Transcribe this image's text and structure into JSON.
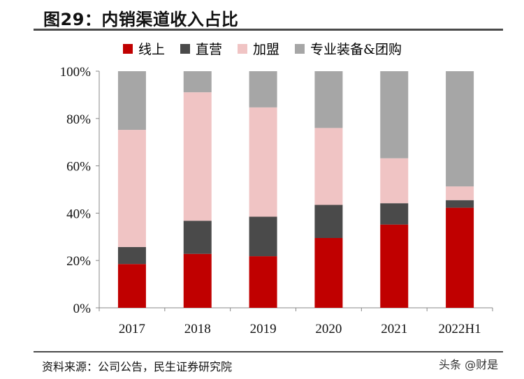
{
  "header": {
    "title": "图29：内销渠道收入占比"
  },
  "source": "资料来源：公司公告，民生证券研究院",
  "watermark": "头条 @财是",
  "colors": {
    "online": "#c00000",
    "direct": "#4a4a4a",
    "franchise": "#f0c4c4",
    "special": "#a6a6a6"
  },
  "chart_data": {
    "type": "bar",
    "stacked": true,
    "title": "内销渠道收入占比",
    "categories": [
      "2017",
      "2018",
      "2019",
      "2020",
      "2021",
      "2022H1"
    ],
    "y_ticks": [
      "0%",
      "20%",
      "40%",
      "60%",
      "80%",
      "100%"
    ],
    "ylim": [
      0,
      100
    ],
    "xlabel": "",
    "ylabel": "",
    "legend_position": "top",
    "series": [
      {
        "name": "线上",
        "color": "#c00000",
        "values": [
          18.5,
          22.8,
          21.8,
          29.5,
          35.2,
          42.3
        ]
      },
      {
        "name": "直营",
        "color": "#4a4a4a",
        "values": [
          7.2,
          14.0,
          16.7,
          14.0,
          9.0,
          3.2
        ]
      },
      {
        "name": "加盟",
        "color": "#f0c4c4",
        "values": [
          49.5,
          54.3,
          46.2,
          32.5,
          19.0,
          5.8
        ]
      },
      {
        "name": "专业装备&团购",
        "color": "#a6a6a6",
        "values": [
          24.8,
          8.9,
          15.3,
          24.0,
          36.8,
          48.7
        ]
      }
    ]
  }
}
